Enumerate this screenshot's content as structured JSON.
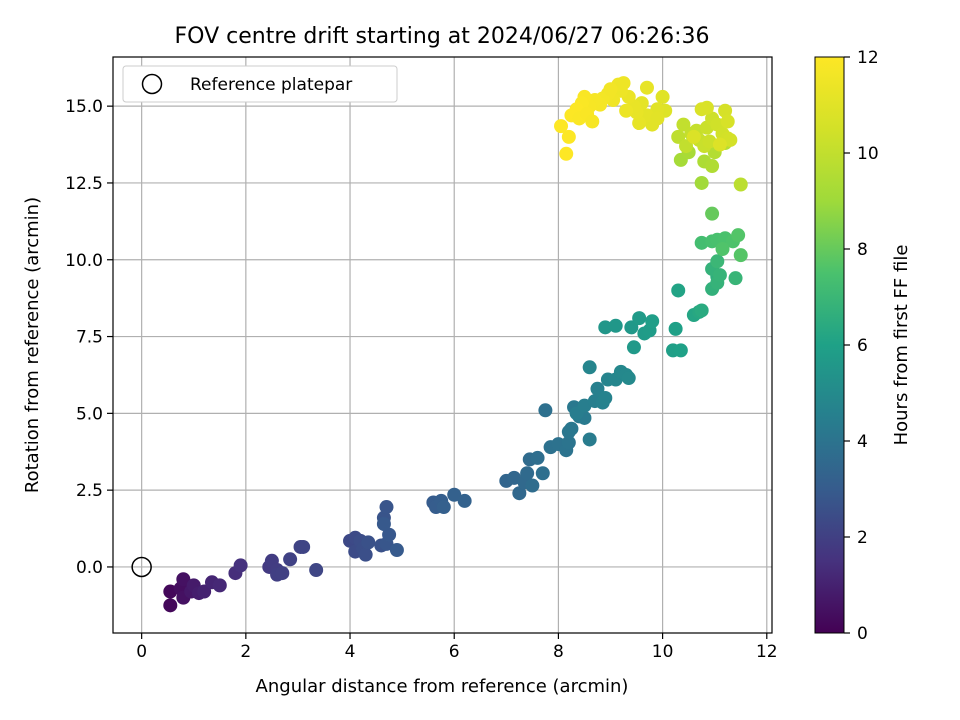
{
  "chart_data": {
    "type": "scatter",
    "title": "FOV centre drift starting at 2024/06/27 06:26:36",
    "xlabel": "Angular distance from reference (arcmin)",
    "ylabel": "Rotation from reference (arcmin)",
    "xlim": [
      -0.55,
      12.1
    ],
    "ylim": [
      -2.15,
      16.6
    ],
    "xticks": [
      0,
      2,
      4,
      6,
      8,
      10,
      12
    ],
    "yticks": [
      0.0,
      2.5,
      5.0,
      7.5,
      10.0,
      12.5,
      15.0
    ],
    "xtick_labels": [
      "0",
      "2",
      "4",
      "6",
      "8",
      "10",
      "12"
    ],
    "ytick_labels": [
      "0.0",
      "2.5",
      "5.0",
      "7.5",
      "10.0",
      "12.5",
      "15.0"
    ],
    "grid": true,
    "legend": {
      "label": "Reference platepar",
      "placement": "upper-left",
      "marker": "open-circle"
    },
    "reference_point": {
      "x": 0,
      "y": 0
    },
    "colorbar": {
      "label": "Hours from first FF file",
      "range": [
        0,
        12
      ],
      "ticks": [
        0,
        2,
        4,
        6,
        8,
        10,
        12
      ],
      "tick_labels": [
        "0",
        "2",
        "4",
        "6",
        "8",
        "10",
        "12"
      ],
      "colormap": "viridis"
    },
    "points": [
      [
        0.55,
        -0.8,
        0.2
      ],
      [
        0.55,
        -1.25,
        0.2
      ],
      [
        0.75,
        -0.7,
        0.4
      ],
      [
        0.8,
        -0.4,
        0.5
      ],
      [
        0.8,
        -1.0,
        0.5
      ],
      [
        0.95,
        -0.8,
        0.7
      ],
      [
        1.0,
        -0.6,
        0.8
      ],
      [
        1.1,
        -0.85,
        0.9
      ],
      [
        1.2,
        -0.8,
        1.0
      ],
      [
        1.35,
        -0.5,
        1.1
      ],
      [
        1.5,
        -0.6,
        1.2
      ],
      [
        1.8,
        -0.2,
        1.4
      ],
      [
        1.9,
        0.05,
        1.5
      ],
      [
        2.45,
        0.0,
        1.8
      ],
      [
        2.5,
        0.2,
        1.85
      ],
      [
        2.6,
        -0.1,
        1.9
      ],
      [
        2.6,
        -0.25,
        1.95
      ],
      [
        2.7,
        -0.2,
        2.0
      ],
      [
        2.85,
        0.25,
        2.05
      ],
      [
        3.05,
        0.65,
        2.1
      ],
      [
        3.1,
        0.65,
        2.15
      ],
      [
        3.35,
        -0.1,
        2.2
      ],
      [
        4.0,
        0.85,
        2.3
      ],
      [
        4.1,
        0.95,
        2.35
      ],
      [
        4.1,
        0.5,
        2.4
      ],
      [
        4.2,
        0.85,
        2.45
      ],
      [
        4.25,
        0.6,
        2.5
      ],
      [
        4.3,
        0.4,
        2.55
      ],
      [
        4.35,
        0.8,
        2.6
      ],
      [
        4.6,
        0.7,
        2.65
      ],
      [
        4.65,
        1.6,
        2.7
      ],
      [
        4.7,
        1.95,
        2.75
      ],
      [
        4.7,
        0.75,
        2.8
      ],
      [
        4.75,
        1.05,
        2.85
      ],
      [
        4.65,
        1.4,
        2.9
      ],
      [
        4.9,
        0.55,
        2.95
      ],
      [
        5.6,
        2.1,
        3.0
      ],
      [
        5.65,
        1.95,
        3.05
      ],
      [
        5.75,
        2.15,
        3.1
      ],
      [
        5.8,
        1.95,
        3.15
      ],
      [
        6.0,
        2.35,
        3.2
      ],
      [
        6.2,
        2.15,
        3.25
      ],
      [
        7.0,
        2.8,
        3.4
      ],
      [
        7.15,
        2.9,
        3.45
      ],
      [
        7.25,
        2.4,
        3.5
      ],
      [
        7.35,
        2.75,
        3.55
      ],
      [
        7.4,
        3.05,
        3.6
      ],
      [
        7.45,
        3.5,
        3.65
      ],
      [
        7.5,
        2.65,
        3.7
      ],
      [
        7.6,
        3.55,
        3.75
      ],
      [
        7.7,
        3.05,
        3.8
      ],
      [
        7.75,
        5.1,
        3.85
      ],
      [
        7.85,
        3.9,
        3.9
      ],
      [
        8.0,
        4.0,
        3.95
      ],
      [
        8.15,
        3.8,
        4.0
      ],
      [
        8.2,
        4.05,
        4.05
      ],
      [
        8.2,
        4.4,
        4.1
      ],
      [
        8.25,
        4.5,
        4.15
      ],
      [
        8.3,
        5.2,
        4.2
      ],
      [
        8.4,
        4.9,
        4.25
      ],
      [
        8.5,
        4.85,
        4.3
      ],
      [
        8.6,
        4.15,
        4.35
      ],
      [
        8.35,
        5.0,
        4.4
      ],
      [
        8.5,
        5.25,
        4.45
      ],
      [
        8.7,
        5.4,
        4.5
      ],
      [
        8.75,
        5.8,
        4.55
      ],
      [
        8.85,
        5.35,
        4.6
      ],
      [
        8.9,
        5.5,
        4.65
      ],
      [
        8.95,
        6.1,
        4.7
      ],
      [
        8.6,
        6.5,
        4.75
      ],
      [
        9.1,
        6.1,
        4.8
      ],
      [
        9.2,
        6.35,
        4.85
      ],
      [
        9.3,
        6.25,
        4.9
      ],
      [
        9.35,
        6.15,
        4.95
      ],
      [
        8.9,
        7.8,
        5.5
      ],
      [
        9.1,
        7.85,
        5.55
      ],
      [
        9.4,
        7.8,
        5.6
      ],
      [
        9.45,
        7.15,
        5.65
      ],
      [
        9.55,
        8.1,
        5.7
      ],
      [
        9.65,
        7.6,
        5.75
      ],
      [
        9.75,
        7.7,
        5.8
      ],
      [
        9.8,
        8.0,
        5.85
      ],
      [
        10.2,
        7.05,
        5.9
      ],
      [
        10.25,
        7.75,
        5.95
      ],
      [
        10.35,
        7.05,
        6.0
      ],
      [
        10.3,
        9.0,
        6.1
      ],
      [
        10.6,
        8.2,
        6.2
      ],
      [
        10.7,
        8.3,
        6.3
      ],
      [
        10.75,
        8.35,
        6.4
      ],
      [
        11.05,
        9.45,
        6.6
      ],
      [
        10.95,
        9.05,
        6.7
      ],
      [
        10.95,
        9.7,
        6.75
      ],
      [
        11.05,
        9.25,
        6.8
      ],
      [
        11.1,
        9.5,
        6.85
      ],
      [
        11.4,
        9.4,
        6.9
      ],
      [
        11.05,
        9.95,
        7.0
      ],
      [
        10.75,
        10.55,
        7.3
      ],
      [
        10.95,
        10.6,
        7.4
      ],
      [
        11.05,
        10.65,
        7.45
      ],
      [
        11.2,
        10.7,
        7.5
      ],
      [
        11.35,
        10.6,
        7.55
      ],
      [
        11.15,
        10.35,
        7.6
      ],
      [
        11.45,
        10.8,
        7.65
      ],
      [
        11.5,
        10.15,
        7.7
      ],
      [
        10.95,
        11.5,
        8.0
      ],
      [
        10.75,
        12.5,
        9.1
      ],
      [
        10.35,
        13.25,
        9.2
      ],
      [
        10.5,
        13.5,
        9.3
      ],
      [
        10.8,
        13.2,
        9.4
      ],
      [
        10.95,
        13.05,
        9.5
      ],
      [
        11.0,
        13.5,
        9.6
      ],
      [
        11.2,
        13.8,
        9.7
      ],
      [
        11.5,
        12.45,
        9.8
      ],
      [
        10.3,
        14.0,
        9.9
      ],
      [
        10.4,
        14.4,
        10.0
      ],
      [
        10.45,
        13.7,
        10.0
      ],
      [
        10.55,
        14.1,
        10.05
      ],
      [
        10.65,
        14.2,
        10.1
      ],
      [
        10.7,
        13.9,
        10.15
      ],
      [
        10.8,
        13.7,
        10.2
      ],
      [
        10.85,
        14.3,
        10.25
      ],
      [
        10.9,
        13.85,
        10.3
      ],
      [
        10.95,
        14.6,
        10.35
      ],
      [
        11.05,
        14.4,
        10.4
      ],
      [
        11.15,
        14.1,
        10.45
      ],
      [
        11.25,
        13.95,
        10.5
      ],
      [
        11.3,
        13.9,
        10.55
      ],
      [
        11.2,
        14.85,
        10.6
      ],
      [
        11.25,
        14.5,
        10.65
      ],
      [
        10.85,
        14.95,
        10.7
      ],
      [
        10.75,
        14.9,
        10.75
      ],
      [
        10.6,
        14.0,
        10.8
      ],
      [
        11.1,
        13.75,
        10.85
      ],
      [
        10.05,
        14.85,
        10.9
      ],
      [
        10.0,
        15.3,
        10.95
      ],
      [
        9.9,
        14.9,
        11.0
      ],
      [
        9.8,
        14.4,
        11.05
      ],
      [
        9.7,
        14.7,
        11.1
      ],
      [
        9.6,
        15.1,
        11.15
      ],
      [
        9.55,
        14.45,
        11.2
      ],
      [
        9.5,
        14.8,
        11.25
      ],
      [
        9.45,
        15.0,
        11.3
      ],
      [
        9.35,
        15.3,
        11.35
      ],
      [
        9.3,
        14.85,
        11.4
      ],
      [
        9.2,
        15.5,
        11.45
      ],
      [
        9.15,
        15.7,
        11.5
      ],
      [
        9.05,
        15.2,
        11.55
      ],
      [
        8.95,
        15.4,
        11.6
      ],
      [
        8.85,
        15.25,
        11.65
      ],
      [
        8.8,
        15.05,
        11.7
      ],
      [
        8.7,
        15.2,
        11.75
      ],
      [
        8.6,
        15.0,
        11.8
      ],
      [
        8.5,
        15.3,
        11.85
      ],
      [
        8.45,
        15.1,
        11.9
      ],
      [
        8.35,
        14.9,
        11.95
      ],
      [
        8.25,
        14.7,
        11.97
      ],
      [
        8.2,
        14.0,
        11.98
      ],
      [
        8.05,
        14.35,
        11.99
      ],
      [
        8.15,
        13.45,
        12.0
      ],
      [
        8.4,
        14.6,
        11.9
      ],
      [
        8.55,
        14.75,
        11.85
      ],
      [
        8.65,
        14.5,
        11.8
      ],
      [
        9.0,
        15.55,
        11.6
      ],
      [
        9.25,
        15.75,
        11.45
      ],
      [
        9.7,
        15.6,
        11.2
      ],
      [
        9.9,
        14.6,
        11.05
      ]
    ]
  }
}
